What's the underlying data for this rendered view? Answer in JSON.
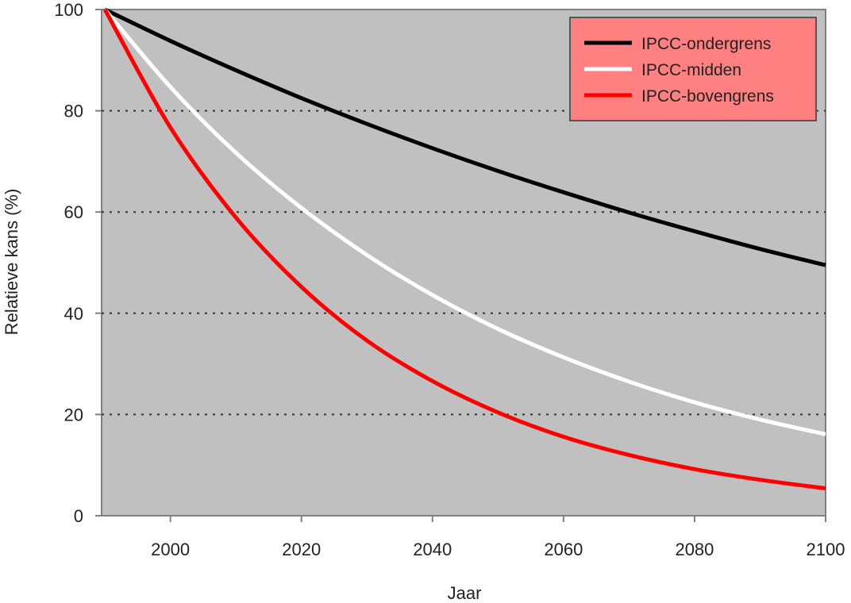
{
  "chart_data": {
    "type": "line",
    "title": "",
    "xlabel": "Jaar",
    "ylabel": "Relatieve kans (%)",
    "xlim": [
      1989.5,
      2100
    ],
    "ylim": [
      0,
      100
    ],
    "xticks": [
      2000,
      2020,
      2040,
      2060,
      2080,
      2100
    ],
    "yticks": [
      0,
      20,
      40,
      60,
      80,
      100
    ],
    "grid": "horizontal dotted",
    "legend_position": "top-right",
    "background": "#c0c0c0",
    "legend_background": "#ff8080",
    "x": [
      1990,
      2000,
      2010,
      2020,
      2030,
      2040,
      2050,
      2060,
      2070,
      2080,
      2090,
      2100
    ],
    "series": [
      {
        "name": "IPCC-ondergrens",
        "color": "#000000",
        "values": [
          100,
          93.8,
          88.0,
          82.5,
          77.4,
          72.6,
          68.1,
          63.9,
          59.9,
          56.2,
          52.7,
          49.5
        ]
      },
      {
        "name": "IPCC-midden",
        "color": "#ffffff",
        "values": [
          100,
          84.7,
          71.7,
          60.8,
          51.5,
          43.6,
          36.9,
          31.3,
          26.5,
          22.4,
          19.0,
          16.1
        ]
      },
      {
        "name": "IPCC-bovengrens",
        "color": "#ff0000",
        "values": [
          100,
          76.7,
          58.9,
          45.2,
          34.6,
          26.6,
          20.4,
          15.6,
          12.0,
          9.2,
          7.1,
          5.4
        ]
      }
    ]
  }
}
